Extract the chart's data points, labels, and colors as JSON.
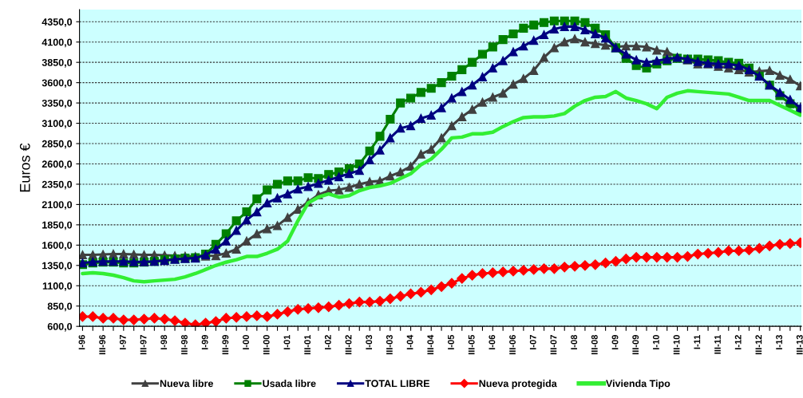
{
  "chart_data": {
    "type": "line",
    "ylabel": "Euros €",
    "categories": [
      "I-96",
      null,
      "III-96",
      null,
      "I-97",
      null,
      "III-97",
      null,
      "I-98",
      null,
      "III-98",
      null,
      "I-99",
      null,
      "III-99",
      null,
      "I-00",
      null,
      "III-00",
      null,
      "I-01",
      null,
      "III-01",
      null,
      "I-02",
      null,
      "III-02",
      null,
      "I-03",
      null,
      "III-03",
      null,
      "I-04",
      null,
      "III-04",
      null,
      "I-05",
      null,
      "III-05",
      null,
      "I-06",
      null,
      "III-06",
      null,
      "I-07",
      null,
      "III-07",
      null,
      "I-08",
      null,
      "III-08",
      null,
      "I-09",
      null,
      "III-09",
      null,
      "I-10",
      null,
      "III-10",
      null,
      "I-11",
      null,
      "III-11",
      null,
      "I-12",
      null,
      "III-12",
      null,
      "I-13",
      null,
      "III-13"
    ],
    "series": [
      {
        "name": "Nueva libre",
        "color": "#404040",
        "marker": "triangle",
        "values": [
          1480,
          1480,
          1485,
          1490,
          1490,
          1485,
          1480,
          1480,
          1475,
          1470,
          1465,
          1460,
          1465,
          1470,
          1500,
          1550,
          1650,
          1740,
          1800,
          1840,
          1940,
          2040,
          2130,
          2220,
          2270,
          2280,
          2310,
          2350,
          2380,
          2390,
          2450,
          2500,
          2570,
          2720,
          2780,
          2920,
          3070,
          3180,
          3270,
          3360,
          3420,
          3470,
          3580,
          3650,
          3750,
          3910,
          4030,
          4100,
          4140,
          4100,
          4080,
          4060,
          4040,
          4050,
          4050,
          4040,
          4000,
          3980,
          3910,
          3880,
          3830,
          3830,
          3800,
          3780,
          3760,
          3730,
          3740,
          3750,
          3690,
          3640,
          3560
        ]
      },
      {
        "name": "Usada libre",
        "color": "#008000",
        "marker": "square",
        "values": [
          1360,
          1380,
          1390,
          1390,
          1380,
          1380,
          1390,
          1400,
          1420,
          1430,
          1440,
          1445,
          1490,
          1610,
          1740,
          1900,
          2010,
          2170,
          2280,
          2350,
          2390,
          2390,
          2430,
          2420,
          2470,
          2500,
          2540,
          2600,
          2760,
          2940,
          3150,
          3350,
          3410,
          3480,
          3530,
          3600,
          3680,
          3760,
          3850,
          3950,
          4040,
          4130,
          4200,
          4270,
          4310,
          4340,
          4360,
          4360,
          4360,
          4340,
          4270,
          4190,
          4030,
          3900,
          3810,
          3780,
          3830,
          3870,
          3900,
          3890,
          3890,
          3880,
          3870,
          3850,
          3840,
          3780,
          3680,
          3570,
          3440,
          3340,
          3270
        ]
      },
      {
        "name": "TOTAL LIBRE",
        "color": "#000080",
        "marker": "triangle",
        "values": [
          1380,
          1395,
          1400,
          1400,
          1400,
          1395,
          1395,
          1400,
          1410,
          1425,
          1435,
          1440,
          1480,
          1550,
          1650,
          1780,
          1910,
          2010,
          2120,
          2180,
          2230,
          2290,
          2320,
          2360,
          2400,
          2440,
          2480,
          2520,
          2650,
          2770,
          2920,
          3040,
          3070,
          3160,
          3200,
          3290,
          3410,
          3490,
          3570,
          3670,
          3780,
          3870,
          3980,
          4050,
          4120,
          4190,
          4260,
          4290,
          4290,
          4250,
          4200,
          4150,
          4030,
          3950,
          3880,
          3850,
          3870,
          3890,
          3910,
          3890,
          3860,
          3840,
          3830,
          3830,
          3810,
          3760,
          3680,
          3570,
          3480,
          3390,
          3290
        ]
      },
      {
        "name": "Nueva protegida",
        "color": "#ff0000",
        "marker": "diamond",
        "values": [
          720,
          720,
          700,
          700,
          680,
          680,
          690,
          700,
          690,
          670,
          640,
          620,
          640,
          660,
          700,
          710,
          720,
          730,
          720,
          750,
          780,
          810,
          820,
          830,
          840,
          860,
          880,
          900,
          900,
          910,
          940,
          970,
          1000,
          1020,
          1050,
          1090,
          1130,
          1190,
          1230,
          1250,
          1260,
          1270,
          1280,
          1290,
          1300,
          1310,
          1310,
          1330,
          1340,
          1350,
          1360,
          1380,
          1400,
          1430,
          1450,
          1450,
          1450,
          1450,
          1450,
          1460,
          1490,
          1500,
          1510,
          1530,
          1530,
          1540,
          1560,
          1590,
          1610,
          1620,
          1630
        ]
      },
      {
        "name": "Vivienda Tipo",
        "color": "#33ee33",
        "marker": "none",
        "values": [
          1250,
          1260,
          1250,
          1230,
          1200,
          1160,
          1150,
          1160,
          1170,
          1180,
          1210,
          1250,
          1300,
          1350,
          1390,
          1420,
          1460,
          1460,
          1500,
          1550,
          1650,
          1900,
          2120,
          2190,
          2230,
          2190,
          2210,
          2270,
          2310,
          2330,
          2360,
          2420,
          2480,
          2590,
          2660,
          2780,
          2920,
          2930,
          2970,
          2970,
          2990,
          3060,
          3120,
          3170,
          3180,
          3180,
          3190,
          3220,
          3310,
          3380,
          3420,
          3430,
          3490,
          3410,
          3380,
          3340,
          3280,
          3420,
          3470,
          3500,
          3490,
          3480,
          3470,
          3460,
          3420,
          3380,
          3380,
          3380,
          3320,
          3260,
          3200
        ]
      }
    ],
    "ylim": [
      600,
      4500
    ],
    "yticks": [
      {
        "value": 600,
        "label": "600,0"
      },
      {
        "value": 850,
        "label": "850,0"
      },
      {
        "value": 1100,
        "label": "1100,0"
      },
      {
        "value": 1350,
        "label": "1350,0"
      },
      {
        "value": 1600,
        "label": "1600,0"
      },
      {
        "value": 1850,
        "label": "1850,0"
      },
      {
        "value": 2100,
        "label": "2100,0"
      },
      {
        "value": 2350,
        "label": "2350,0"
      },
      {
        "value": 2600,
        "label": "2600,0"
      },
      {
        "value": 2850,
        "label": "2850,0"
      },
      {
        "value": 3100,
        "label": "3100,0"
      },
      {
        "value": 3350,
        "label": "3350,0"
      },
      {
        "value": 3600,
        "label": "3600,0"
      },
      {
        "value": 3850,
        "label": "3850,0"
      },
      {
        "value": 4100,
        "label": "4100,0"
      },
      {
        "value": 4350,
        "label": "4350,0"
      }
    ],
    "grid": "y",
    "legend": "bottom",
    "line_style": "solid"
  }
}
